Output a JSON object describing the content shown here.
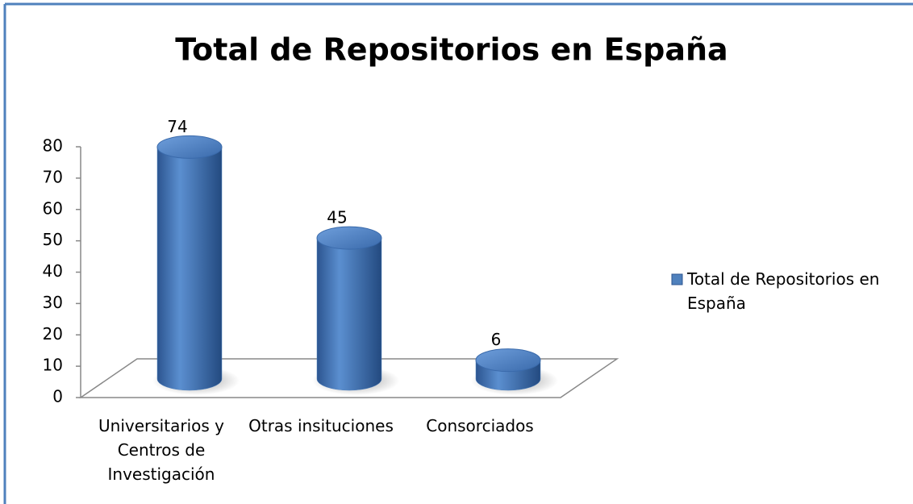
{
  "chart_data": {
    "type": "bar3d",
    "title": "Total de Repositorios en España",
    "categories": [
      "Universitarios y Centros de Investigación",
      "Otras insituciones",
      "Consorciados"
    ],
    "series": [
      {
        "name": "Total de Repositorios en España",
        "color": "#4f81bd",
        "values": [
          74,
          45,
          6
        ]
      }
    ],
    "ylim": [
      0,
      80
    ],
    "yticks": [
      0,
      10,
      20,
      30,
      40,
      50,
      60,
      70,
      80
    ],
    "legend": "right"
  }
}
